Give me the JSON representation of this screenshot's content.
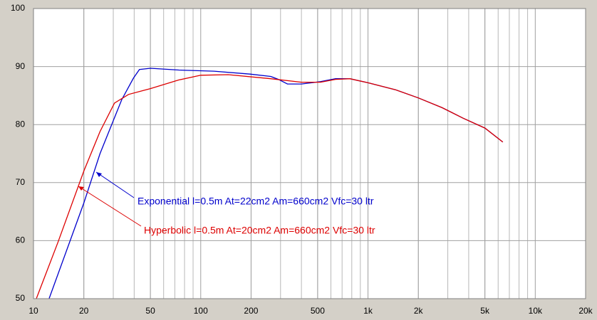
{
  "chart_data": {
    "type": "line",
    "xscale": "log",
    "grid": true,
    "xlim": [
      10,
      20000
    ],
    "ylim": [
      50,
      100
    ],
    "xticks": [
      10,
      20,
      50,
      100,
      200,
      500,
      {
        "value": 1000,
        "label": "1k"
      },
      {
        "value": 2000,
        "label": "2k"
      },
      {
        "value": 5000,
        "label": "5k"
      },
      {
        "value": 10000,
        "label": "10k"
      },
      {
        "value": 20000,
        "label": "20k"
      }
    ],
    "yticks": [
      50,
      60,
      70,
      80,
      90,
      100
    ],
    "series": [
      {
        "name": "Exponential l=0.5m At=22cm2 Am=660cm2 Vfc=30 ltr",
        "color": "#0000cc",
        "x": [
          12.4,
          20,
          25,
          33.7,
          39.6,
          43,
          50,
          74,
          120,
          197,
          262,
          291,
          330,
          400,
          520,
          640,
          780,
          1000,
          1460,
          2000,
          2780,
          3700,
          5000,
          6400
        ],
        "values": [
          50,
          66.5,
          75,
          84.3,
          88,
          89.5,
          89.7,
          89.4,
          89.2,
          88.7,
          88.3,
          87.8,
          87,
          87,
          87.4,
          87.9,
          87.9,
          87.2,
          86,
          84.6,
          82.9,
          81.1,
          79.4,
          77
        ]
      },
      {
        "name": "Hyperbolic l=0.5m At=20cm2 Am=660cm2 Vfc=30 ltr",
        "color": "#dd0000",
        "x": [
          10.4,
          14,
          20,
          25,
          30.5,
          37,
          50,
          74,
          100,
          146,
          262,
          400,
          520,
          640,
          780,
          1000,
          1460,
          2000,
          2780,
          3700,
          5000,
          6400
        ],
        "values": [
          50,
          59.7,
          72,
          78.8,
          83.7,
          85.2,
          86.2,
          87.7,
          88.5,
          88.6,
          87.9,
          87.3,
          87.3,
          87.8,
          87.9,
          87.2,
          86,
          84.6,
          82.9,
          81.1,
          79.4,
          77
        ]
      }
    ]
  }
}
